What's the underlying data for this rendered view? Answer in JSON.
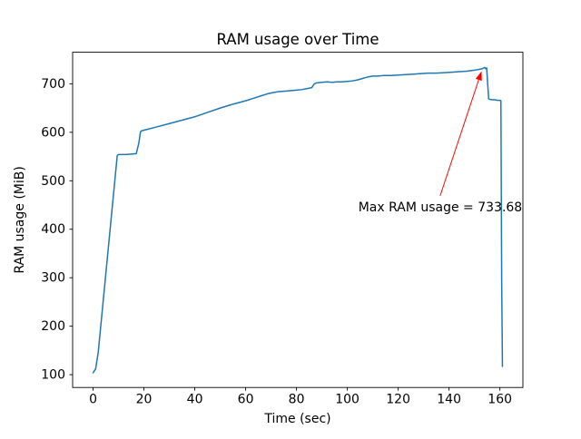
{
  "page": {
    "background": "#ffffff"
  },
  "chart_data": {
    "type": "line",
    "title": "RAM usage over Time",
    "xlabel": "Time (sec)",
    "ylabel": "RAM usage (MiB)",
    "line_color": "#1f77b4",
    "line_width": 1.5,
    "frame_color": "#000000",
    "grid": false,
    "legend": null,
    "xlim": [
      -8.05,
      169.05
    ],
    "ylim": [
      73.6,
      765.1
    ],
    "x_ticks": [
      0,
      20,
      40,
      60,
      80,
      100,
      120,
      140,
      160
    ],
    "y_ticks": [
      100,
      200,
      300,
      400,
      500,
      600,
      700
    ],
    "points": [
      [
        0,
        104
      ],
      [
        1,
        112
      ],
      [
        2,
        145
      ],
      [
        9.5,
        552
      ],
      [
        10,
        554
      ],
      [
        13,
        554
      ],
      [
        17,
        556
      ],
      [
        18,
        578
      ],
      [
        18.6,
        600
      ],
      [
        19,
        603
      ],
      [
        22,
        607
      ],
      [
        25,
        611
      ],
      [
        30,
        618
      ],
      [
        35,
        625
      ],
      [
        40,
        632
      ],
      [
        45,
        641
      ],
      [
        50,
        650
      ],
      [
        55,
        658
      ],
      [
        60,
        665
      ],
      [
        63,
        670
      ],
      [
        66,
        675
      ],
      [
        69,
        680
      ],
      [
        71,
        682
      ],
      [
        73,
        684
      ],
      [
        76,
        685
      ],
      [
        78,
        686
      ],
      [
        80,
        687
      ],
      [
        82,
        688
      ],
      [
        84,
        690
      ],
      [
        86,
        692
      ],
      [
        87,
        700
      ],
      [
        88,
        702
      ],
      [
        90,
        703
      ],
      [
        92,
        704
      ],
      [
        94,
        703
      ],
      [
        96,
        704
      ],
      [
        98,
        704
      ],
      [
        100,
        705
      ],
      [
        102,
        706
      ],
      [
        104,
        708
      ],
      [
        106,
        711
      ],
      [
        108,
        714
      ],
      [
        110,
        716
      ],
      [
        112,
        716
      ],
      [
        114,
        717
      ],
      [
        117,
        717
      ],
      [
        120,
        718
      ],
      [
        123,
        719
      ],
      [
        126,
        720
      ],
      [
        129,
        721
      ],
      [
        132,
        722
      ],
      [
        135,
        722
      ],
      [
        138,
        723
      ],
      [
        141,
        724
      ],
      [
        144,
        725
      ],
      [
        147,
        726
      ],
      [
        150,
        728
      ],
      [
        152,
        730
      ],
      [
        153,
        731
      ],
      [
        154,
        733.68
      ],
      [
        154.4,
        731
      ],
      [
        154.8,
        733
      ],
      [
        155.2,
        700
      ],
      [
        155.6,
        669
      ],
      [
        156,
        668
      ],
      [
        157,
        667
      ],
      [
        158,
        667
      ],
      [
        159,
        666
      ],
      [
        160,
        666
      ],
      [
        160.4,
        665
      ],
      [
        160.7,
        300
      ],
      [
        161,
        117
      ]
    ],
    "max_value": 733.68,
    "annotation": {
      "text": "Max RAM usage = 733.68",
      "color": "#ff0000",
      "text_xy": [
        104.3,
        437
      ],
      "arrow_start": [
        136.5,
        469
      ],
      "arrow_end": [
        152.8,
        726
      ]
    }
  }
}
